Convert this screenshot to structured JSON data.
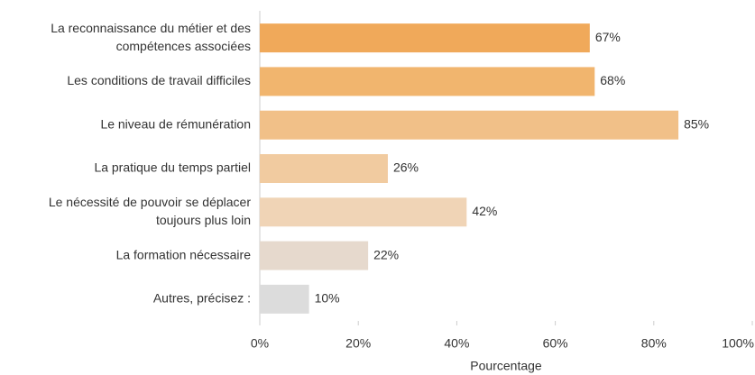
{
  "chart_data": {
    "type": "bar",
    "orientation": "horizontal",
    "x_label": "Pourcentage",
    "categories": [
      [
        "La reconnaissance du métier et des",
        "compétences associées"
      ],
      [
        "Les conditions de travail difficiles"
      ],
      [
        "Le niveau de rémunération"
      ],
      [
        "La pratique du temps partiel"
      ],
      [
        "Le nécessité de pouvoir se déplacer",
        "toujours plus loin"
      ],
      [
        "La formation nécessaire"
      ],
      [
        "Autres, précisez :"
      ]
    ],
    "values": [
      67,
      68,
      85,
      26,
      42,
      22,
      10
    ],
    "value_labels": [
      "67%",
      "68%",
      "85%",
      "26%",
      "42%",
      "22%",
      "10%"
    ],
    "colors": [
      "#f0a95a",
      "#f1b56e",
      "#f1c088",
      "#f1cba0",
      "#f0d4b6",
      "#e6d9cd",
      "#dcdcdc"
    ],
    "xlim": [
      0,
      100
    ],
    "xticks": [
      {
        "value": 0,
        "label": "0%"
      },
      {
        "value": 20,
        "label": "20%"
      },
      {
        "value": 40,
        "label": "40%"
      },
      {
        "value": 60,
        "label": "60%"
      },
      {
        "value": 80,
        "label": "80%"
      },
      {
        "value": 100,
        "label": "100%"
      }
    ],
    "grid": false
  }
}
